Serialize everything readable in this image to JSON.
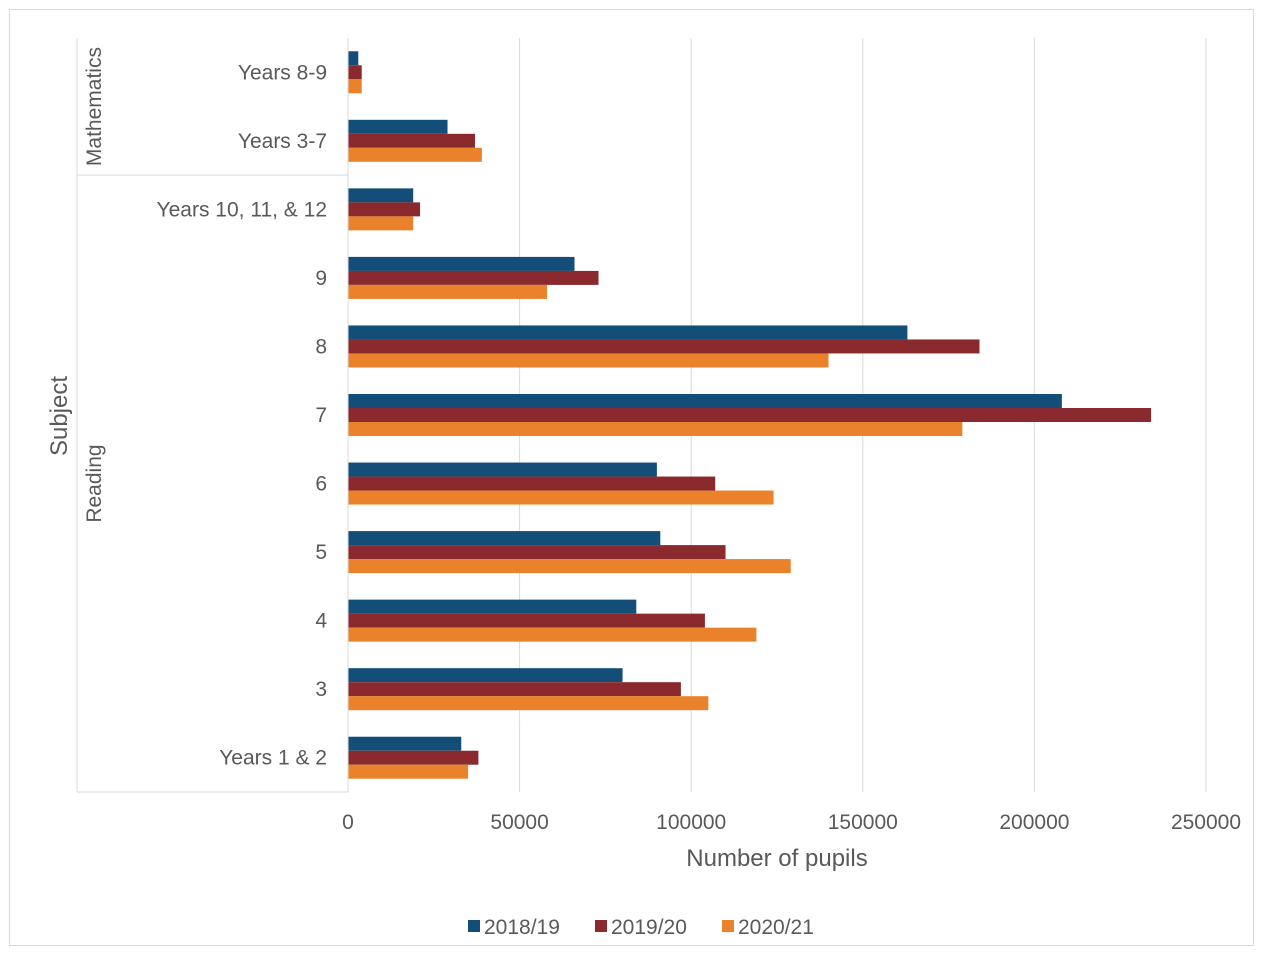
{
  "chart_data": {
    "type": "bar",
    "orientation": "horizontal",
    "xlabel": "Number of pupils",
    "ylabel": "Subject",
    "xlim": [
      0,
      250000
    ],
    "x_ticks": [
      "0",
      "50000",
      "100000",
      "150000",
      "200000",
      "250000"
    ],
    "grid": "vertical",
    "legend_position": "bottom",
    "categories": [
      {
        "group": "Mathematics",
        "label": "Years 8-9"
      },
      {
        "group": "Mathematics",
        "label": "Years 3-7"
      },
      {
        "group": "Reading",
        "label": "Years 10, 11, & 12"
      },
      {
        "group": "Reading",
        "label": "9"
      },
      {
        "group": "Reading",
        "label": "8"
      },
      {
        "group": "Reading",
        "label": "7"
      },
      {
        "group": "Reading",
        "label": "6"
      },
      {
        "group": "Reading",
        "label": "5"
      },
      {
        "group": "Reading",
        "label": "4"
      },
      {
        "group": "Reading",
        "label": "3"
      },
      {
        "group": "Reading",
        "label": "Years 1 & 2"
      }
    ],
    "groups": [
      "Mathematics",
      "Reading"
    ],
    "series": [
      {
        "name": "2018/19",
        "color": "#124e78",
        "values": [
          3000,
          29000,
          19000,
          66000,
          163000,
          208000,
          90000,
          91000,
          84000,
          80000,
          33000
        ]
      },
      {
        "name": "2019/20",
        "color": "#8b2a2e",
        "values": [
          4000,
          37000,
          21000,
          73000,
          184000,
          234000,
          107000,
          110000,
          104000,
          97000,
          38000
        ]
      },
      {
        "name": "2020/21",
        "color": "#e9822a",
        "values": [
          4000,
          39000,
          19000,
          58000,
          140000,
          179000,
          124000,
          129000,
          119000,
          105000,
          35000
        ]
      }
    ]
  }
}
